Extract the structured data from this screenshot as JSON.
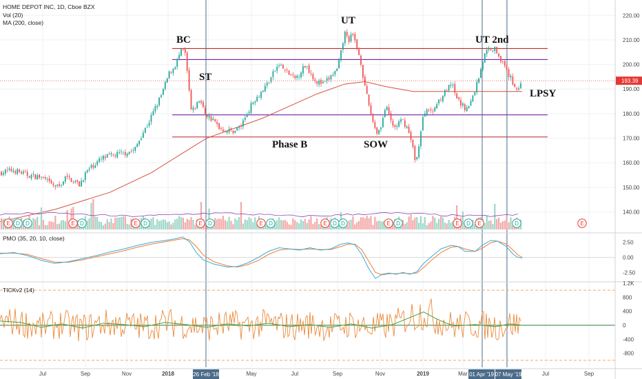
{
  "chart_data": {
    "type": "candlestick",
    "title": "HOME DEPOT INC, 1D, Cboe BZX",
    "indicators": [
      "Vol (20)",
      "MA (200, close)"
    ],
    "price_axis": {
      "ylim": [
        132,
        224
      ],
      "ticks": [
        140,
        150,
        160,
        170,
        180,
        190,
        200,
        210,
        220
      ]
    },
    "last_price": {
      "value": "193.39",
      "color": "#e53935"
    },
    "x_labels": [
      "Jul",
      "Sep",
      "Nov",
      "2018",
      "Mar",
      "May",
      "Jul",
      "Sep",
      "Nov",
      "2019",
      "Mar",
      "May",
      "Jul",
      "Sep"
    ],
    "highlighted_dates": [
      "26 Feb '18",
      "01 Apr '19",
      "07 May '19"
    ],
    "annotations": [
      "BC",
      "ST",
      "UT",
      "UT 2nd",
      "LPSY",
      "Phase B",
      "SOW"
    ],
    "levels": [
      {
        "value": 206.5,
        "color": "#c62828"
      },
      {
        "value": 202.0,
        "color": "#7b1fa2"
      },
      {
        "value": 179.5,
        "color": "#7b1fa2"
      },
      {
        "value": 170.5,
        "color": "#c62828"
      }
    ],
    "price_path": [
      [
        0,
        156
      ],
      [
        20,
        157
      ],
      [
        40,
        155
      ],
      [
        60,
        154
      ],
      [
        75,
        151
      ],
      [
        85,
        150
      ],
      [
        95,
        154
      ],
      [
        105,
        153
      ],
      [
        115,
        151
      ],
      [
        125,
        156
      ],
      [
        135,
        159
      ],
      [
        150,
        162
      ],
      [
        165,
        163
      ],
      [
        180,
        164
      ],
      [
        195,
        165
      ],
      [
        205,
        171
      ],
      [
        215,
        176
      ],
      [
        225,
        182
      ],
      [
        235,
        188
      ],
      [
        245,
        196
      ],
      [
        255,
        200
      ],
      [
        262,
        205
      ],
      [
        268,
        206
      ],
      [
        272,
        196
      ],
      [
        278,
        180
      ],
      [
        284,
        183
      ],
      [
        290,
        186
      ],
      [
        296,
        181
      ],
      [
        302,
        179
      ],
      [
        310,
        177
      ],
      [
        320,
        174
      ],
      [
        330,
        173
      ],
      [
        340,
        173
      ],
      [
        350,
        175
      ],
      [
        360,
        181
      ],
      [
        370,
        186
      ],
      [
        380,
        189
      ],
      [
        390,
        193
      ],
      [
        398,
        197
      ],
      [
        405,
        200
      ],
      [
        412,
        198
      ],
      [
        420,
        196
      ],
      [
        428,
        194
      ],
      [
        436,
        197
      ],
      [
        444,
        200
      ],
      [
        452,
        196
      ],
      [
        460,
        193
      ],
      [
        470,
        192
      ],
      [
        480,
        195
      ],
      [
        490,
        198
      ],
      [
        496,
        206
      ],
      [
        500,
        213
      ],
      [
        506,
        210
      ],
      [
        512,
        212
      ],
      [
        518,
        207
      ],
      [
        524,
        201
      ],
      [
        530,
        190
      ],
      [
        536,
        183
      ],
      [
        542,
        176
      ],
      [
        548,
        172
      ],
      [
        554,
        176
      ],
      [
        560,
        183
      ],
      [
        566,
        178
      ],
      [
        572,
        174
      ],
      [
        578,
        176
      ],
      [
        584,
        177
      ],
      [
        590,
        175
      ],
      [
        596,
        170
      ],
      [
        600,
        165
      ],
      [
        604,
        160
      ],
      [
        608,
        167
      ],
      [
        614,
        178
      ],
      [
        620,
        183
      ],
      [
        626,
        180
      ],
      [
        632,
        183
      ],
      [
        638,
        186
      ],
      [
        644,
        188
      ],
      [
        650,
        190
      ],
      [
        656,
        192
      ],
      [
        660,
        188
      ],
      [
        666,
        185
      ],
      [
        672,
        183
      ],
      [
        678,
        182
      ],
      [
        684,
        185
      ],
      [
        690,
        190
      ],
      [
        696,
        196
      ],
      [
        702,
        203
      ],
      [
        708,
        206
      ],
      [
        714,
        207
      ],
      [
        720,
        206
      ],
      [
        726,
        203
      ],
      [
        732,
        199
      ],
      [
        738,
        196
      ],
      [
        742,
        194
      ],
      [
        748,
        191
      ],
      [
        752,
        190
      ],
      [
        758,
        193
      ]
    ],
    "ma200_path": [
      [
        0,
        136
      ],
      [
        80,
        141
      ],
      [
        160,
        148
      ],
      [
        220,
        156
      ],
      [
        260,
        163
      ],
      [
        300,
        170
      ],
      [
        340,
        174
      ],
      [
        380,
        178
      ],
      [
        420,
        183
      ],
      [
        460,
        188
      ],
      [
        500,
        192
      ],
      [
        530,
        193
      ],
      [
        560,
        191
      ],
      [
        600,
        189
      ],
      [
        640,
        189
      ],
      [
        680,
        189
      ],
      [
        720,
        189
      ],
      [
        758,
        189
      ]
    ],
    "volume_e_markers": [
      "E",
      "D",
      "D",
      "E",
      "D",
      "E",
      "D",
      "E",
      "D",
      "E",
      "D",
      "E",
      "D",
      "D",
      "E",
      "D",
      "E",
      "D",
      "E",
      "D",
      "E"
    ],
    "volume_e_marker_x": [
      12,
      26,
      40,
      106,
      119,
      197,
      211,
      291,
      305,
      379,
      393,
      472,
      486,
      498,
      564,
      578,
      664,
      680,
      696,
      750,
      845
    ],
    "pmo": {
      "label": "PMO (35, 20, 10, close)",
      "ylim": [
        -3.6,
        3.6
      ],
      "ticks": [
        2.5,
        0.0,
        -2.5
      ],
      "tick_labels": [
        "2.50",
        "0.00",
        "-2.50"
      ],
      "pmo_line": [
        [
          0,
          0.6
        ],
        [
          20,
          0.8
        ],
        [
          40,
          0.3
        ],
        [
          60,
          -0.5
        ],
        [
          80,
          -1.0
        ],
        [
          100,
          -0.7
        ],
        [
          120,
          -0.2
        ],
        [
          140,
          0.3
        ],
        [
          160,
          0.9
        ],
        [
          180,
          1.4
        ],
        [
          200,
          2.0
        ],
        [
          220,
          2.5
        ],
        [
          240,
          2.8
        ],
        [
          255,
          3.1
        ],
        [
          265,
          3.4
        ],
        [
          275,
          2.6
        ],
        [
          285,
          0.8
        ],
        [
          295,
          -0.4
        ],
        [
          310,
          -1.1
        ],
        [
          330,
          -1.6
        ],
        [
          345,
          -1.5
        ],
        [
          360,
          -0.9
        ],
        [
          375,
          0.0
        ],
        [
          390,
          1.0
        ],
        [
          405,
          1.6
        ],
        [
          420,
          1.4
        ],
        [
          435,
          1.2
        ],
        [
          450,
          1.6
        ],
        [
          465,
          1.2
        ],
        [
          480,
          1.4
        ],
        [
          495,
          2.2
        ],
        [
          505,
          2.4
        ],
        [
          515,
          2.1
        ],
        [
          525,
          0.5
        ],
        [
          535,
          -1.8
        ],
        [
          545,
          -3.5
        ],
        [
          555,
          -2.8
        ],
        [
          565,
          -2.6
        ],
        [
          575,
          -2.8
        ],
        [
          585,
          -2.5
        ],
        [
          595,
          -2.8
        ],
        [
          605,
          -2.4
        ],
        [
          615,
          -1.0
        ],
        [
          625,
          0.0
        ],
        [
          640,
          1.4
        ],
        [
          655,
          2.0
        ],
        [
          665,
          1.8
        ],
        [
          675,
          1.0
        ],
        [
          690,
          1.0
        ],
        [
          700,
          2.0
        ],
        [
          712,
          2.8
        ],
        [
          722,
          2.7
        ],
        [
          735,
          1.8
        ],
        [
          745,
          0.5
        ],
        [
          752,
          0.0
        ],
        [
          758,
          -0.1
        ]
      ],
      "signal_line": [
        [
          0,
          0.7
        ],
        [
          20,
          0.7
        ],
        [
          40,
          0.5
        ],
        [
          60,
          -0.2
        ],
        [
          80,
          -0.8
        ],
        [
          100,
          -0.8
        ],
        [
          120,
          -0.4
        ],
        [
          140,
          0.1
        ],
        [
          160,
          0.6
        ],
        [
          180,
          1.1
        ],
        [
          200,
          1.7
        ],
        [
          220,
          2.2
        ],
        [
          240,
          2.6
        ],
        [
          255,
          2.9
        ],
        [
          265,
          3.1
        ],
        [
          275,
          2.9
        ],
        [
          285,
          1.8
        ],
        [
          295,
          0.4
        ],
        [
          310,
          -0.7
        ],
        [
          330,
          -1.4
        ],
        [
          345,
          -1.6
        ],
        [
          360,
          -1.2
        ],
        [
          375,
          -0.5
        ],
        [
          390,
          0.5
        ],
        [
          405,
          1.2
        ],
        [
          420,
          1.4
        ],
        [
          435,
          1.3
        ],
        [
          450,
          1.4
        ],
        [
          465,
          1.3
        ],
        [
          480,
          1.3
        ],
        [
          495,
          1.8
        ],
        [
          505,
          2.2
        ],
        [
          515,
          2.2
        ],
        [
          525,
          1.3
        ],
        [
          535,
          -0.6
        ],
        [
          545,
          -2.5
        ],
        [
          555,
          -2.9
        ],
        [
          565,
          -2.7
        ],
        [
          575,
          -2.7
        ],
        [
          585,
          -2.6
        ],
        [
          595,
          -2.7
        ],
        [
          605,
          -2.6
        ],
        [
          615,
          -1.7
        ],
        [
          625,
          -0.6
        ],
        [
          640,
          0.8
        ],
        [
          655,
          1.7
        ],
        [
          665,
          1.8
        ],
        [
          675,
          1.4
        ],
        [
          690,
          1.0
        ],
        [
          700,
          1.5
        ],
        [
          712,
          2.4
        ],
        [
          722,
          2.7
        ],
        [
          735,
          2.2
        ],
        [
          745,
          1.2
        ],
        [
          752,
          0.4
        ],
        [
          758,
          0.0
        ]
      ]
    },
    "tick": {
      "label": "TICKv2 (14)",
      "ylim": [
        -1200,
        1200
      ],
      "ticks": [
        1200,
        800,
        400,
        0,
        -400,
        -800
      ],
      "tick_labels": [
        "1.2K",
        "800",
        "400",
        "0",
        "-400",
        "-800"
      ],
      "bands": [
        1000,
        -1000
      ],
      "smooth_line": [
        [
          0,
          120
        ],
        [
          30,
          80
        ],
        [
          60,
          -60
        ],
        [
          90,
          40
        ],
        [
          120,
          -80
        ],
        [
          150,
          60
        ],
        [
          180,
          20
        ],
        [
          210,
          -40
        ],
        [
          240,
          80
        ],
        [
          270,
          20
        ],
        [
          300,
          -60
        ],
        [
          330,
          40
        ],
        [
          360,
          -20
        ],
        [
          390,
          60
        ],
        [
          420,
          -40
        ],
        [
          450,
          20
        ],
        [
          480,
          -60
        ],
        [
          510,
          40
        ],
        [
          540,
          -80
        ],
        [
          570,
          20
        ],
        [
          600,
          260
        ],
        [
          615,
          380
        ],
        [
          630,
          220
        ],
        [
          645,
          80
        ],
        [
          660,
          -20
        ],
        [
          690,
          20
        ],
        [
          720,
          -40
        ],
        [
          740,
          40
        ],
        [
          758,
          0
        ]
      ]
    }
  }
}
